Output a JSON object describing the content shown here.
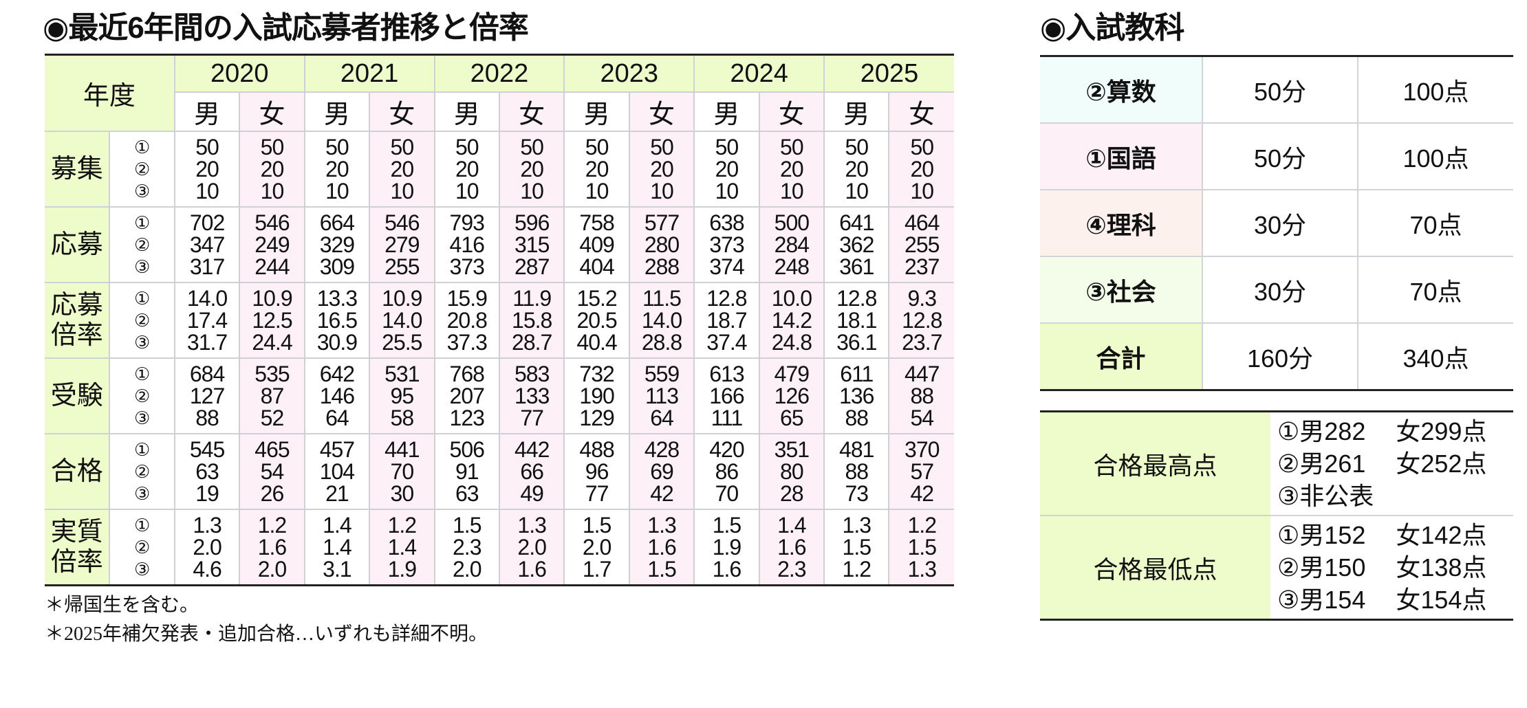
{
  "history": {
    "title": "◉最近6年間の入試応募者推移と倍率",
    "year_header": "年度",
    "years": [
      "2020",
      "2021",
      "2022",
      "2023",
      "2024",
      "2025"
    ],
    "male_label": "男",
    "female_label": "女",
    "round_marks": [
      "①",
      "②",
      "③"
    ],
    "metrics": [
      {
        "label": "募集",
        "values": [
          [
            "50",
            "20",
            "10"
          ],
          [
            "50",
            "20",
            "10"
          ],
          [
            "50",
            "20",
            "10"
          ],
          [
            "50",
            "20",
            "10"
          ],
          [
            "50",
            "20",
            "10"
          ],
          [
            "50",
            "20",
            "10"
          ],
          [
            "50",
            "20",
            "10"
          ],
          [
            "50",
            "20",
            "10"
          ],
          [
            "50",
            "20",
            "10"
          ],
          [
            "50",
            "20",
            "10"
          ],
          [
            "50",
            "20",
            "10"
          ],
          [
            "50",
            "20",
            "10"
          ]
        ]
      },
      {
        "label": "応募",
        "values": [
          [
            "702",
            "347",
            "317"
          ],
          [
            "546",
            "249",
            "244"
          ],
          [
            "664",
            "329",
            "309"
          ],
          [
            "546",
            "279",
            "255"
          ],
          [
            "793",
            "416",
            "373"
          ],
          [
            "596",
            "315",
            "287"
          ],
          [
            "758",
            "409",
            "404"
          ],
          [
            "577",
            "280",
            "288"
          ],
          [
            "638",
            "373",
            "374"
          ],
          [
            "500",
            "284",
            "248"
          ],
          [
            "641",
            "362",
            "361"
          ],
          [
            "464",
            "255",
            "237"
          ]
        ]
      },
      {
        "label": "応募倍率",
        "values": [
          [
            "14.0",
            "17.4",
            "31.7"
          ],
          [
            "10.9",
            "12.5",
            "24.4"
          ],
          [
            "13.3",
            "16.5",
            "30.9"
          ],
          [
            "10.9",
            "14.0",
            "25.5"
          ],
          [
            "15.9",
            "20.8",
            "37.3"
          ],
          [
            "11.9",
            "15.8",
            "28.7"
          ],
          [
            "15.2",
            "20.5",
            "40.4"
          ],
          [
            "11.5",
            "14.0",
            "28.8"
          ],
          [
            "12.8",
            "18.7",
            "37.4"
          ],
          [
            "10.0",
            "14.2",
            "24.8"
          ],
          [
            "12.8",
            "18.1",
            "36.1"
          ],
          [
            "9.3",
            "12.8",
            "23.7"
          ]
        ]
      },
      {
        "label": "受験",
        "values": [
          [
            "684",
            "127",
            "88"
          ],
          [
            "535",
            "87",
            "52"
          ],
          [
            "642",
            "146",
            "64"
          ],
          [
            "531",
            "95",
            "58"
          ],
          [
            "768",
            "207",
            "123"
          ],
          [
            "583",
            "133",
            "77"
          ],
          [
            "732",
            "190",
            "129"
          ],
          [
            "559",
            "113",
            "64"
          ],
          [
            "613",
            "166",
            "111"
          ],
          [
            "479",
            "126",
            "65"
          ],
          [
            "611",
            "136",
            "88"
          ],
          [
            "447",
            "88",
            "54"
          ]
        ]
      },
      {
        "label": "合格",
        "values": [
          [
            "545",
            "63",
            "19"
          ],
          [
            "465",
            "54",
            "26"
          ],
          [
            "457",
            "104",
            "21"
          ],
          [
            "441",
            "70",
            "30"
          ],
          [
            "506",
            "91",
            "63"
          ],
          [
            "442",
            "66",
            "49"
          ],
          [
            "488",
            "96",
            "77"
          ],
          [
            "428",
            "69",
            "42"
          ],
          [
            "420",
            "86",
            "70"
          ],
          [
            "351",
            "80",
            "28"
          ],
          [
            "481",
            "88",
            "73"
          ],
          [
            "370",
            "57",
            "42"
          ]
        ]
      },
      {
        "label": "実質倍率",
        "values": [
          [
            "1.3",
            "2.0",
            "4.6"
          ],
          [
            "1.2",
            "1.6",
            "2.0"
          ],
          [
            "1.4",
            "1.4",
            "3.1"
          ],
          [
            "1.2",
            "1.4",
            "1.9"
          ],
          [
            "1.5",
            "2.3",
            "2.0"
          ],
          [
            "1.3",
            "2.0",
            "1.6"
          ],
          [
            "1.5",
            "2.0",
            "1.7"
          ],
          [
            "1.3",
            "1.6",
            "1.5"
          ],
          [
            "1.5",
            "1.9",
            "1.6"
          ],
          [
            "1.4",
            "1.6",
            "2.3"
          ],
          [
            "1.3",
            "1.5",
            "1.2"
          ],
          [
            "1.2",
            "1.5",
            "1.3"
          ]
        ]
      }
    ],
    "footnotes": [
      "＊帰国生を含む。",
      "＊2025年補欠発表・追加合格…いずれも詳細不明。"
    ]
  },
  "subjects": {
    "title": "◉入試教科",
    "rows": [
      {
        "name": "②算数",
        "time": "50分",
        "points": "100点",
        "color": "#f0fdfb"
      },
      {
        "name": "①国語",
        "time": "50分",
        "points": "100点",
        "color": "#fdf0f6"
      },
      {
        "name": "④理科",
        "time": "30分",
        "points": "70点",
        "color": "#fdf1ee"
      },
      {
        "name": "③社会",
        "time": "30分",
        "points": "70点",
        "color": "#f4fde9"
      },
      {
        "name": "合計",
        "time": "160分",
        "points": "340点",
        "color": "#eefccb"
      }
    ]
  },
  "passing_scores": {
    "rows": [
      {
        "label": "合格最高点",
        "lines": [
          {
            "m": "①男282",
            "f": "女299点"
          },
          {
            "m": "②男261",
            "f": "女252点"
          },
          {
            "m": "③非公表",
            "f": ""
          }
        ]
      },
      {
        "label": "合格最低点",
        "lines": [
          {
            "m": "①男152",
            "f": "女142点"
          },
          {
            "m": "②男150",
            "f": "女138点"
          },
          {
            "m": "③男154",
            "f": "女154点"
          }
        ]
      }
    ]
  },
  "colors": {
    "header_green": "#eefccb",
    "female_pink": "#fdf0f6",
    "border": "#cfd0d6"
  }
}
